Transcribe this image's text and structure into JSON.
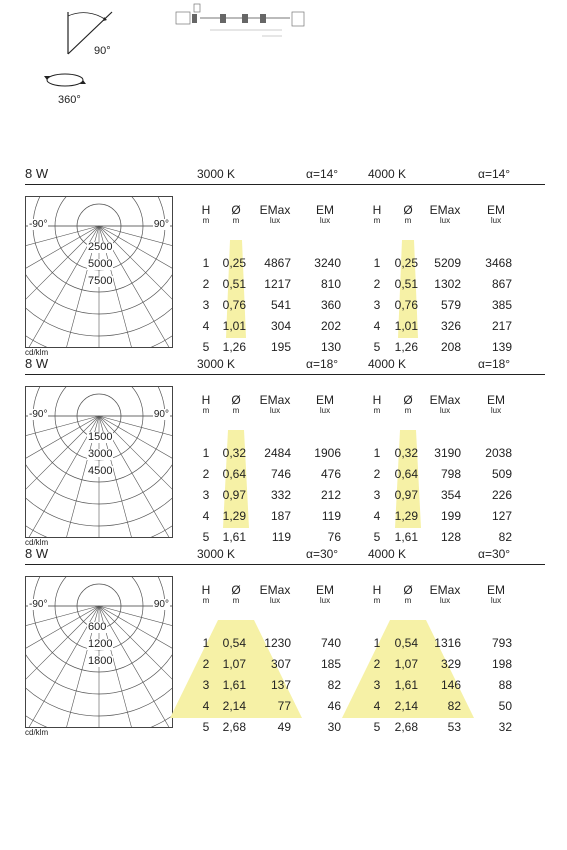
{
  "top": {
    "angle_label": "90°",
    "rotation_label": "360°"
  },
  "sections": [
    {
      "power": "8 W",
      "left_temp": "3000 K",
      "left_alpha": "α=14°",
      "right_temp": "4000 K",
      "right_alpha": "α=14°",
      "polar": {
        "left_angle": "-90°",
        "right_angle": "90°",
        "ring_labels": [
          "2500",
          "5000",
          "7500"
        ],
        "unit": "cd/klm"
      },
      "columns": [
        {
          "head": "H",
          "unit": "m"
        },
        {
          "head": "Ø",
          "unit": "m"
        },
        {
          "head": "EMax",
          "unit": "lux"
        },
        {
          "head": "EM",
          "unit": "lux"
        }
      ],
      "left_rows": [
        {
          "h": "1",
          "d": "0,25",
          "emax": "4867",
          "em": "3240"
        },
        {
          "h": "2",
          "d": "0,51",
          "emax": "1217",
          "em": "810"
        },
        {
          "h": "3",
          "d": "0,76",
          "emax": "541",
          "em": "360"
        },
        {
          "h": "4",
          "d": "1,01",
          "emax": "304",
          "em": "202"
        },
        {
          "h": "5",
          "d": "1,26",
          "emax": "195",
          "em": "130"
        }
      ],
      "right_rows": [
        {
          "h": "1",
          "d": "0,25",
          "emax": "5209",
          "em": "3468"
        },
        {
          "h": "2",
          "d": "0,51",
          "emax": "1302",
          "em": "867"
        },
        {
          "h": "3",
          "d": "0,76",
          "emax": "579",
          "em": "385"
        },
        {
          "h": "4",
          "d": "1,01",
          "emax": "326",
          "em": "217"
        },
        {
          "h": "5",
          "d": "1,26",
          "emax": "208",
          "em": "139"
        }
      ]
    },
    {
      "power": "8 W",
      "left_temp": "3000 K",
      "left_alpha": "α=18°",
      "right_temp": "4000 K",
      "right_alpha": "α=18°",
      "polar": {
        "left_angle": "-90°",
        "right_angle": "90°",
        "ring_labels": [
          "1500",
          "3000",
          "4500"
        ],
        "unit": "cd/klm"
      },
      "columns": [
        {
          "head": "H",
          "unit": "m"
        },
        {
          "head": "Ø",
          "unit": "m"
        },
        {
          "head": "EMax",
          "unit": "lux"
        },
        {
          "head": "EM",
          "unit": "lux"
        }
      ],
      "left_rows": [
        {
          "h": "1",
          "d": "0,32",
          "emax": "2484",
          "em": "1906"
        },
        {
          "h": "2",
          "d": "0,64",
          "emax": "746",
          "em": "476"
        },
        {
          "h": "3",
          "d": "0,97",
          "emax": "332",
          "em": "212"
        },
        {
          "h": "4",
          "d": "1,29",
          "emax": "187",
          "em": "119"
        },
        {
          "h": "5",
          "d": "1,61",
          "emax": "119",
          "em": "76"
        }
      ],
      "right_rows": [
        {
          "h": "1",
          "d": "0,32",
          "emax": "3190",
          "em": "2038"
        },
        {
          "h": "2",
          "d": "0,64",
          "emax": "798",
          "em": "509"
        },
        {
          "h": "3",
          "d": "0,97",
          "emax": "354",
          "em": "226"
        },
        {
          "h": "4",
          "d": "1,29",
          "emax": "199",
          "em": "127"
        },
        {
          "h": "5",
          "d": "1,61",
          "emax": "128",
          "em": "82"
        }
      ]
    },
    {
      "power": "8 W",
      "left_temp": "3000 K",
      "left_alpha": "α=30°",
      "right_temp": "4000 K",
      "right_alpha": "α=30°",
      "polar": {
        "left_angle": "-90°",
        "right_angle": "90°",
        "ring_labels": [
          "600",
          "1200",
          "1800"
        ],
        "unit": "cd/klm"
      },
      "columns": [
        {
          "head": "H",
          "unit": "m"
        },
        {
          "head": "Ø",
          "unit": "m"
        },
        {
          "head": "EMax",
          "unit": "lux"
        },
        {
          "head": "EM",
          "unit": "lux"
        }
      ],
      "left_rows": [
        {
          "h": "1",
          "d": "0,54",
          "emax": "1230",
          "em": "740"
        },
        {
          "h": "2",
          "d": "1,07",
          "emax": "307",
          "em": "185"
        },
        {
          "h": "3",
          "d": "1,61",
          "emax": "137",
          "em": "82"
        },
        {
          "h": "4",
          "d": "2,14",
          "emax": "77",
          "em": "46"
        },
        {
          "h": "5",
          "d": "2,68",
          "emax": "49",
          "em": "30"
        }
      ],
      "right_rows": [
        {
          "h": "1",
          "d": "0,54",
          "emax": "1316",
          "em": "793"
        },
        {
          "h": "2",
          "d": "1,07",
          "emax": "329",
          "em": "198"
        },
        {
          "h": "3",
          "d": "1,61",
          "emax": "146",
          "em": "88"
        },
        {
          "h": "4",
          "d": "2,14",
          "emax": "82",
          "em": "50"
        },
        {
          "h": "5",
          "d": "2,68",
          "emax": "53",
          "em": "32"
        }
      ]
    }
  ],
  "colors": {
    "beam": "#f6f1a6",
    "grid": "#555555",
    "text": "#222222"
  }
}
